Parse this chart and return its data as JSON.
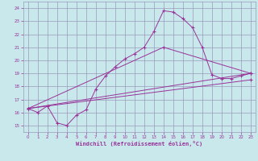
{
  "xlabel": "Windchill (Refroidissement éolien,°C)",
  "xlim": [
    -0.5,
    23.5
  ],
  "ylim": [
    14.5,
    24.5
  ],
  "yticks": [
    15,
    16,
    17,
    18,
    19,
    20,
    21,
    22,
    23,
    24
  ],
  "xticks": [
    0,
    1,
    2,
    3,
    4,
    5,
    6,
    7,
    8,
    9,
    10,
    11,
    12,
    13,
    14,
    15,
    16,
    17,
    18,
    19,
    20,
    21,
    22,
    23
  ],
  "background_color": "#c8e8ec",
  "grid_color": "#9999bb",
  "line_color": "#993399",
  "line1_x": [
    0,
    1,
    2,
    3,
    4,
    5,
    6,
    7,
    8,
    9,
    10,
    11,
    12,
    13,
    14,
    15,
    16,
    17,
    18,
    19,
    20,
    21,
    22,
    23
  ],
  "line1_y": [
    16.3,
    16.0,
    16.5,
    15.2,
    15.0,
    15.8,
    16.2,
    17.8,
    18.8,
    19.5,
    20.1,
    20.5,
    21.0,
    22.2,
    23.8,
    23.7,
    23.2,
    22.5,
    21.0,
    18.9,
    18.6,
    18.6,
    18.8,
    19.0
  ],
  "line2_x": [
    0,
    14,
    23
  ],
  "line2_y": [
    16.3,
    21.0,
    19.0
  ],
  "line3_x": [
    0,
    23
  ],
  "line3_y": [
    16.3,
    19.0
  ],
  "line4_x": [
    0,
    23
  ],
  "line4_y": [
    16.3,
    18.5
  ],
  "marker": "+"
}
